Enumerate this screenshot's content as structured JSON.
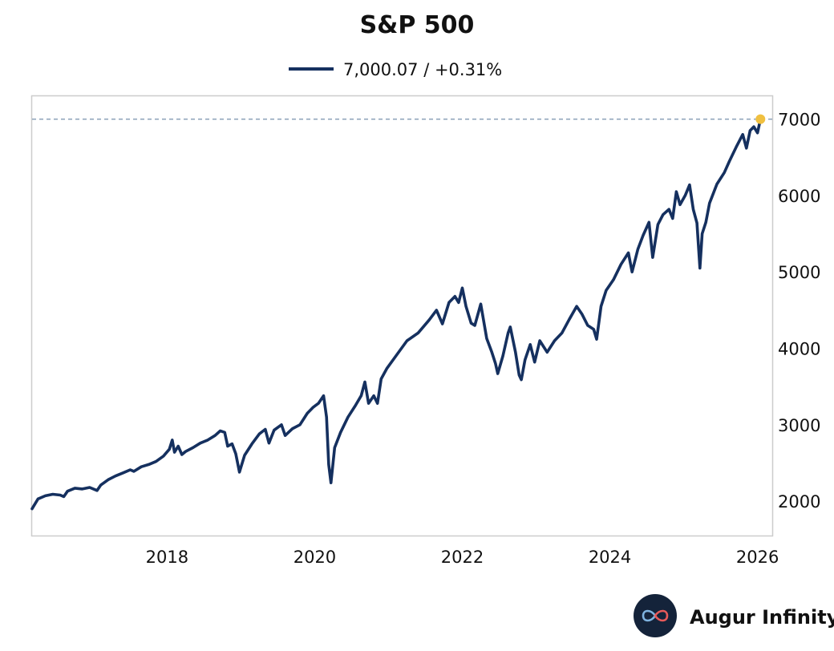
{
  "chart_data": {
    "type": "line",
    "title": "S&P 500",
    "legend": {
      "label": "7,000.07 / +0.31%",
      "placement": "top-center"
    },
    "series": [
      {
        "name": "S&P 500",
        "color": "#15305f",
        "points": [
          [
            2016.17,
            1900
          ],
          [
            2016.25,
            2030
          ],
          [
            2016.35,
            2070
          ],
          [
            2016.45,
            2090
          ],
          [
            2016.55,
            2080
          ],
          [
            2016.6,
            2060
          ],
          [
            2016.65,
            2130
          ],
          [
            2016.75,
            2170
          ],
          [
            2016.85,
            2160
          ],
          [
            2016.95,
            2180
          ],
          [
            2017.05,
            2140
          ],
          [
            2017.1,
            2210
          ],
          [
            2017.2,
            2280
          ],
          [
            2017.3,
            2330
          ],
          [
            2017.4,
            2370
          ],
          [
            2017.5,
            2410
          ],
          [
            2017.55,
            2390
          ],
          [
            2017.65,
            2450
          ],
          [
            2017.75,
            2480
          ],
          [
            2017.85,
            2520
          ],
          [
            2017.95,
            2590
          ],
          [
            2018.03,
            2680
          ],
          [
            2018.07,
            2800
          ],
          [
            2018.1,
            2640
          ],
          [
            2018.15,
            2720
          ],
          [
            2018.2,
            2610
          ],
          [
            2018.25,
            2650
          ],
          [
            2018.35,
            2700
          ],
          [
            2018.45,
            2760
          ],
          [
            2018.55,
            2800
          ],
          [
            2018.65,
            2860
          ],
          [
            2018.72,
            2920
          ],
          [
            2018.78,
            2900
          ],
          [
            2018.82,
            2720
          ],
          [
            2018.88,
            2750
          ],
          [
            2018.93,
            2620
          ],
          [
            2018.98,
            2380
          ],
          [
            2019.05,
            2600
          ],
          [
            2019.15,
            2750
          ],
          [
            2019.25,
            2880
          ],
          [
            2019.33,
            2940
          ],
          [
            2019.38,
            2760
          ],
          [
            2019.45,
            2930
          ],
          [
            2019.55,
            3000
          ],
          [
            2019.6,
            2860
          ],
          [
            2019.7,
            2950
          ],
          [
            2019.8,
            3000
          ],
          [
            2019.9,
            3150
          ],
          [
            2019.98,
            3230
          ],
          [
            2020.05,
            3280
          ],
          [
            2020.12,
            3380
          ],
          [
            2020.16,
            3100
          ],
          [
            2020.19,
            2480
          ],
          [
            2020.22,
            2240
          ],
          [
            2020.27,
            2700
          ],
          [
            2020.35,
            2900
          ],
          [
            2020.45,
            3100
          ],
          [
            2020.55,
            3250
          ],
          [
            2020.63,
            3380
          ],
          [
            2020.68,
            3560
          ],
          [
            2020.73,
            3280
          ],
          [
            2020.8,
            3380
          ],
          [
            2020.85,
            3280
          ],
          [
            2020.9,
            3600
          ],
          [
            2020.98,
            3740
          ],
          [
            2021.1,
            3900
          ],
          [
            2021.25,
            4100
          ],
          [
            2021.4,
            4200
          ],
          [
            2021.55,
            4370
          ],
          [
            2021.65,
            4500
          ],
          [
            2021.73,
            4320
          ],
          [
            2021.82,
            4600
          ],
          [
            2021.9,
            4680
          ],
          [
            2021.95,
            4600
          ],
          [
            2022.0,
            4790
          ],
          [
            2022.05,
            4550
          ],
          [
            2022.12,
            4330
          ],
          [
            2022.17,
            4300
          ],
          [
            2022.25,
            4580
          ],
          [
            2022.33,
            4130
          ],
          [
            2022.4,
            3950
          ],
          [
            2022.45,
            3800
          ],
          [
            2022.48,
            3670
          ],
          [
            2022.55,
            3900
          ],
          [
            2022.62,
            4200
          ],
          [
            2022.65,
            4280
          ],
          [
            2022.72,
            3950
          ],
          [
            2022.77,
            3650
          ],
          [
            2022.8,
            3590
          ],
          [
            2022.85,
            3850
          ],
          [
            2022.92,
            4050
          ],
          [
            2022.98,
            3820
          ],
          [
            2023.05,
            4100
          ],
          [
            2023.15,
            3950
          ],
          [
            2023.25,
            4100
          ],
          [
            2023.35,
            4200
          ],
          [
            2023.45,
            4380
          ],
          [
            2023.55,
            4550
          ],
          [
            2023.62,
            4450
          ],
          [
            2023.7,
            4300
          ],
          [
            2023.78,
            4250
          ],
          [
            2023.82,
            4120
          ],
          [
            2023.88,
            4550
          ],
          [
            2023.95,
            4760
          ],
          [
            2024.05,
            4900
          ],
          [
            2024.15,
            5100
          ],
          [
            2024.25,
            5250
          ],
          [
            2024.3,
            5000
          ],
          [
            2024.38,
            5300
          ],
          [
            2024.45,
            5480
          ],
          [
            2024.53,
            5650
          ],
          [
            2024.58,
            5190
          ],
          [
            2024.65,
            5620
          ],
          [
            2024.72,
            5750
          ],
          [
            2024.8,
            5820
          ],
          [
            2024.85,
            5700
          ],
          [
            2024.9,
            6050
          ],
          [
            2024.95,
            5880
          ],
          [
            2025.02,
            6000
          ],
          [
            2025.08,
            6140
          ],
          [
            2025.13,
            5820
          ],
          [
            2025.18,
            5640
          ],
          [
            2025.22,
            5050
          ],
          [
            2025.25,
            5500
          ],
          [
            2025.3,
            5650
          ],
          [
            2025.35,
            5900
          ],
          [
            2025.45,
            6150
          ],
          [
            2025.55,
            6300
          ],
          [
            2025.62,
            6450
          ],
          [
            2025.72,
            6650
          ],
          [
            2025.8,
            6800
          ],
          [
            2025.85,
            6620
          ],
          [
            2025.9,
            6850
          ],
          [
            2025.95,
            6900
          ],
          [
            2026.0,
            6820
          ],
          [
            2026.04,
            7000.07
          ]
        ]
      }
    ],
    "last_value": 7000.07,
    "reference_line": 7000,
    "xlim": [
      2016.17,
      2026.2
    ],
    "ylim": [
      1550,
      7300
    ],
    "x_ticks": [
      2018,
      2020,
      2022,
      2024,
      2026
    ],
    "x_tick_labels": [
      "2018",
      "2020",
      "2022",
      "2024",
      "2026"
    ],
    "y_ticks": [
      2000,
      3000,
      4000,
      5000,
      6000,
      7000
    ],
    "y_tick_labels": [
      "2000",
      "3000",
      "4000",
      "5000",
      "6000",
      "7000"
    ],
    "xlabel": "",
    "ylabel": "",
    "y_axis_side": "right",
    "grid": false
  },
  "colors": {
    "line": "#15305f",
    "last_point": "#f0c040",
    "reference_line": "#8aa0b8",
    "frame": "#cccccc"
  },
  "branding": {
    "name": "Augur Infinity",
    "logo_icon": "infinity-icon",
    "placement": "bottom-right"
  }
}
